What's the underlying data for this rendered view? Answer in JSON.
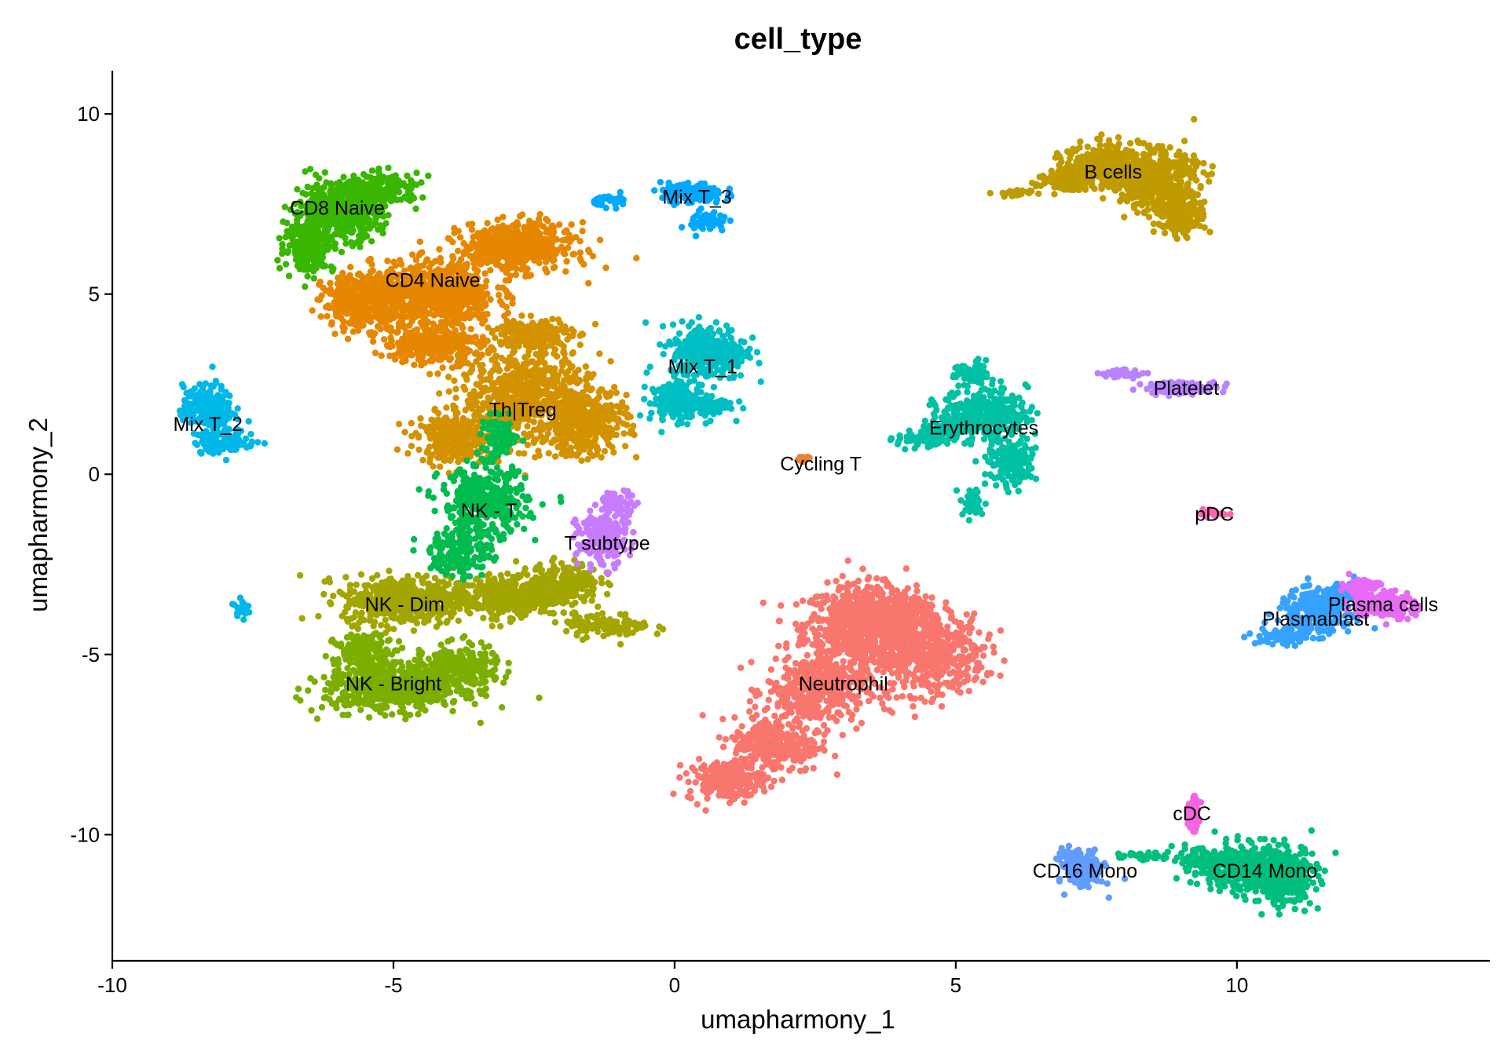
{
  "chart_data": {
    "type": "scatter",
    "title": "cell_type",
    "xlabel": "umapharmony_1",
    "ylabel": "umapharmony_2",
    "xlim": [
      -10,
      14.5
    ],
    "ylim": [
      -13.5,
      11.2
    ],
    "xticks": [
      -10,
      -5,
      0,
      5,
      10
    ],
    "yticks": [
      -10,
      -5,
      0,
      5,
      10
    ],
    "grid": false,
    "legend": "none",
    "clusters": [
      {
        "name": "Neutrophil",
        "color": "#F8766D",
        "label_x": 3.0,
        "label_y": -5.8,
        "centers": [
          [
            3.3,
            -4.2,
            0.9,
            1.0,
            700
          ],
          [
            4.5,
            -5.0,
            0.9,
            1.0,
            500
          ],
          [
            2.5,
            -6.0,
            0.8,
            0.9,
            400
          ],
          [
            1.8,
            -7.5,
            0.7,
            0.7,
            300
          ],
          [
            0.9,
            -8.5,
            0.6,
            0.5,
            200
          ],
          [
            4.0,
            -3.8,
            0.6,
            0.6,
            200
          ]
        ]
      },
      {
        "name": "Cycling T",
        "color": "#EA8331",
        "label_x": 2.6,
        "label_y": 0.3,
        "centers": [
          [
            2.3,
            0.4,
            0.12,
            0.08,
            20
          ]
        ]
      },
      {
        "name": "CD4 Naive",
        "color": "#E58700",
        "label_x": -4.3,
        "label_y": 5.4,
        "centers": [
          [
            -4.3,
            5.0,
            1.0,
            0.8,
            700
          ],
          [
            -2.8,
            6.3,
            0.9,
            0.6,
            500
          ],
          [
            -5.6,
            4.8,
            0.6,
            0.7,
            300
          ],
          [
            -4.3,
            3.6,
            0.8,
            0.5,
            300
          ]
        ]
      },
      {
        "name": "Th|Treg",
        "color": "#D39200",
        "label_x": -2.7,
        "label_y": 1.8,
        "centers": [
          [
            -2.7,
            2.2,
            1.0,
            1.2,
            600
          ],
          [
            -1.6,
            1.5,
            0.7,
            0.9,
            400
          ],
          [
            -3.9,
            1.0,
            0.6,
            0.6,
            300
          ],
          [
            -2.5,
            3.9,
            0.6,
            0.4,
            200
          ]
        ]
      },
      {
        "name": "B cells",
        "color": "#C09B00",
        "label_x": 7.8,
        "label_y": 8.4,
        "centers": [
          [
            8.5,
            8.2,
            0.7,
            0.7,
            500
          ],
          [
            7.6,
            8.6,
            0.6,
            0.5,
            300
          ],
          [
            9.0,
            7.2,
            0.4,
            0.5,
            200
          ],
          [
            7.0,
            8.1,
            0.5,
            0.3,
            100
          ],
          [
            6.0,
            7.8,
            0.3,
            0.1,
            30
          ]
        ]
      },
      {
        "name": "NK - Dim",
        "color": "#A3A500",
        "label_x": -4.8,
        "label_y": -3.6,
        "centers": [
          [
            -4.8,
            -3.5,
            1.0,
            0.6,
            500
          ],
          [
            -3.0,
            -3.4,
            0.9,
            0.5,
            400
          ],
          [
            -2.0,
            -3.0,
            0.6,
            0.5,
            200
          ],
          [
            -1.2,
            -4.2,
            0.7,
            0.3,
            100
          ]
        ]
      },
      {
        "name": "NK - Bright",
        "color": "#7CAE00",
        "label_x": -5.0,
        "label_y": -5.8,
        "centers": [
          [
            -5.0,
            -5.9,
            1.1,
            0.6,
            600
          ],
          [
            -3.8,
            -5.4,
            0.6,
            0.6,
            250
          ],
          [
            -5.5,
            -4.9,
            0.5,
            0.4,
            150
          ]
        ]
      },
      {
        "name": "CD8 Naive",
        "color": "#39B600",
        "label_x": -6.0,
        "label_y": 7.4,
        "centers": [
          [
            -6.0,
            7.3,
            0.7,
            0.7,
            500
          ],
          [
            -6.5,
            6.3,
            0.4,
            0.6,
            200
          ],
          [
            -5.2,
            7.9,
            0.6,
            0.4,
            200
          ]
        ]
      },
      {
        "name": "NK - T",
        "color": "#00BB4E",
        "label_x": -3.3,
        "label_y": -1.0,
        "centers": [
          [
            -3.4,
            -0.8,
            0.7,
            0.9,
            400
          ],
          [
            -3.8,
            -2.2,
            0.5,
            0.6,
            150
          ],
          [
            -3.1,
            1.0,
            0.3,
            0.5,
            100
          ]
        ]
      },
      {
        "name": "CD14 Mono",
        "color": "#00BF7D",
        "label_x": 10.5,
        "label_y": -11.0,
        "centers": [
          [
            10.3,
            -10.9,
            0.8,
            0.6,
            500
          ],
          [
            10.8,
            -11.3,
            0.5,
            0.6,
            250
          ],
          [
            9.3,
            -10.7,
            0.4,
            0.3,
            80
          ],
          [
            8.3,
            -10.6,
            0.4,
            0.1,
            30
          ]
        ]
      },
      {
        "name": "Erythrocytes",
        "color": "#00C1A3",
        "label_x": 5.5,
        "label_y": 1.3,
        "centers": [
          [
            5.5,
            1.7,
            0.7,
            0.6,
            350
          ],
          [
            6.0,
            0.3,
            0.4,
            0.6,
            150
          ],
          [
            5.3,
            2.8,
            0.3,
            0.3,
            80
          ],
          [
            4.5,
            1.0,
            0.5,
            0.3,
            100
          ],
          [
            5.3,
            -0.8,
            0.2,
            0.4,
            40
          ]
        ]
      },
      {
        "name": "Mix T_1",
        "color": "#00BFC4",
        "label_x": 0.5,
        "label_y": 3.0,
        "centers": [
          [
            0.6,
            3.4,
            0.6,
            0.7,
            350
          ],
          [
            0.0,
            2.0,
            0.4,
            0.5,
            150
          ],
          [
            0.6,
            1.9,
            0.4,
            0.3,
            80
          ]
        ]
      },
      {
        "name": "Mix T_2",
        "color": "#00B8E7",
        "label_x": -8.3,
        "label_y": 1.4,
        "centers": [
          [
            -8.3,
            1.8,
            0.4,
            0.6,
            250
          ],
          [
            -8.0,
            0.9,
            0.5,
            0.3,
            100
          ],
          [
            -7.7,
            -3.7,
            0.1,
            0.2,
            30
          ]
        ]
      },
      {
        "name": "Mix T_3",
        "color": "#00A9FF",
        "label_x": 0.4,
        "label_y": 7.7,
        "centers": [
          [
            0.3,
            7.8,
            0.5,
            0.25,
            150
          ],
          [
            0.6,
            7.0,
            0.3,
            0.3,
            60
          ],
          [
            -1.1,
            7.6,
            0.3,
            0.15,
            30
          ]
        ]
      },
      {
        "name": "Plasmablast",
        "color": "#35A2FF",
        "label_x": 11.4,
        "label_y": -4.0,
        "centers": [
          [
            11.4,
            -3.8,
            0.6,
            0.5,
            250
          ],
          [
            10.9,
            -4.5,
            0.5,
            0.2,
            80
          ],
          [
            11.9,
            -3.3,
            0.4,
            0.3,
            60
          ]
        ]
      },
      {
        "name": "CD16 Mono",
        "color": "#619CFF",
        "label_x": 7.3,
        "label_y": -11.0,
        "centers": [
          [
            7.3,
            -11.0,
            0.3,
            0.45,
            150
          ],
          [
            7.0,
            -10.6,
            0.2,
            0.2,
            40
          ]
        ]
      },
      {
        "name": "T subtype",
        "color": "#C77CFF",
        "label_x": -1.2,
        "label_y": -1.9,
        "centers": [
          [
            -1.3,
            -1.8,
            0.4,
            0.7,
            200
          ],
          [
            -1.0,
            -0.8,
            0.3,
            0.3,
            60
          ]
        ]
      },
      {
        "name": "Platelet",
        "color": "#B983FF",
        "label_x": 9.1,
        "label_y": 2.4,
        "centers": [
          [
            9.0,
            2.4,
            0.6,
            0.15,
            120
          ],
          [
            8.0,
            2.8,
            0.4,
            0.1,
            40
          ]
        ]
      },
      {
        "name": "Plasma cells",
        "color": "#E76BF3",
        "label_x": 12.6,
        "label_y": -3.6,
        "centers": [
          [
            12.6,
            -3.6,
            0.5,
            0.35,
            180
          ],
          [
            12.2,
            -3.1,
            0.3,
            0.2,
            60
          ]
        ]
      },
      {
        "name": "cDC",
        "color": "#F564E3",
        "label_x": 9.2,
        "label_y": -9.4,
        "centers": [
          [
            9.2,
            -9.4,
            0.12,
            0.4,
            60
          ]
        ]
      },
      {
        "name": "pDC",
        "color": "#FF64B0",
        "label_x": 9.6,
        "label_y": -1.1,
        "centers": [
          [
            9.6,
            -1.1,
            0.25,
            0.08,
            25
          ]
        ]
      }
    ]
  }
}
